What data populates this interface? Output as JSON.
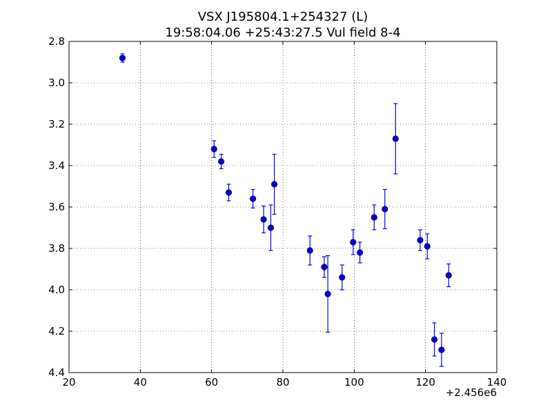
{
  "chart_data": {
    "type": "scatter",
    "title_line1": "VSX J195804.1+254327 (L)",
    "title_line2": "19:58:04.06 +25:43:27.5 Vul field 8-4",
    "xlabel": "",
    "ylabel": "",
    "x_offset_label": "+2.456e6",
    "xlim": [
      20,
      140
    ],
    "ylim": [
      2.8,
      4.4
    ],
    "y_inverted": true,
    "grid": true,
    "x_ticks": [
      20,
      40,
      60,
      80,
      100,
      120,
      140
    ],
    "y_ticks": [
      2.8,
      3.0,
      3.2,
      3.4,
      3.6,
      3.8,
      4.0,
      4.2,
      4.4
    ],
    "x_tick_labels": [
      "20",
      "40",
      "60",
      "80",
      "100",
      "120",
      "140"
    ],
    "y_tick_labels": [
      "2.8",
      "3.0",
      "3.2",
      "3.4",
      "3.6",
      "3.8",
      "4.0",
      "4.2",
      "4.4"
    ],
    "marker_color": "#0000cc",
    "errorbar_color": "#0000ee",
    "points": [
      {
        "x": 35.0,
        "y": 2.88,
        "err": 0.02
      },
      {
        "x": 60.7,
        "y": 3.32,
        "err": 0.04
      },
      {
        "x": 62.7,
        "y": 3.38,
        "err": 0.035
      },
      {
        "x": 64.8,
        "y": 3.53,
        "err": 0.04
      },
      {
        "x": 71.6,
        "y": 3.56,
        "err": 0.045
      },
      {
        "x": 74.6,
        "y": 3.66,
        "err": 0.065
      },
      {
        "x": 76.6,
        "y": 3.7,
        "err": 0.11
      },
      {
        "x": 77.6,
        "y": 3.49,
        "err": 0.145
      },
      {
        "x": 87.6,
        "y": 3.81,
        "err": 0.07
      },
      {
        "x": 91.6,
        "y": 3.89,
        "err": 0.05
      },
      {
        "x": 92.6,
        "y": 4.02,
        "err": 0.185
      },
      {
        "x": 96.6,
        "y": 3.94,
        "err": 0.06
      },
      {
        "x": 99.7,
        "y": 3.77,
        "err": 0.06
      },
      {
        "x": 101.6,
        "y": 3.82,
        "err": 0.05
      },
      {
        "x": 105.6,
        "y": 3.65,
        "err": 0.06
      },
      {
        "x": 108.6,
        "y": 3.61,
        "err": 0.095
      },
      {
        "x": 111.6,
        "y": 3.27,
        "err": 0.17
      },
      {
        "x": 118.5,
        "y": 3.76,
        "err": 0.05
      },
      {
        "x": 120.5,
        "y": 3.79,
        "err": 0.06
      },
      {
        "x": 122.5,
        "y": 4.24,
        "err": 0.08
      },
      {
        "x": 124.5,
        "y": 4.29,
        "err": 0.08
      },
      {
        "x": 126.5,
        "y": 3.93,
        "err": 0.055
      }
    ]
  }
}
